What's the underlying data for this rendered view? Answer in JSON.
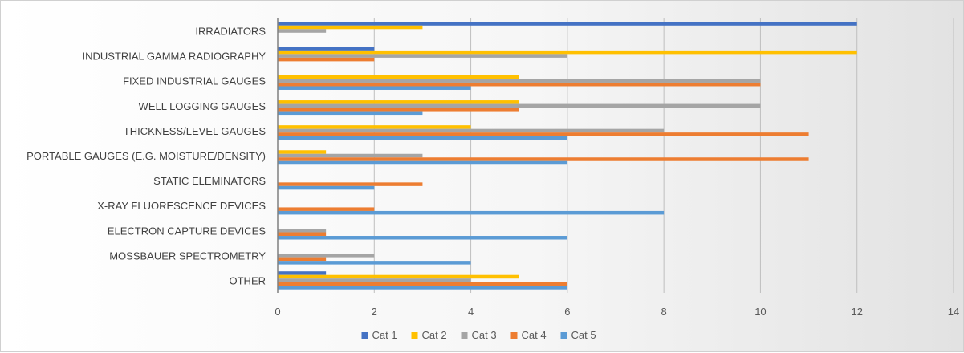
{
  "chart_data": {
    "type": "bar",
    "orientation": "horizontal",
    "categories": [
      "IRRADIATORS",
      "INDUSTRIAL GAMMA RADIOGRAPHY",
      "FIXED INDUSTRIAL GAUGES",
      "WELL LOGGING GAUGES",
      "THICKNESS/LEVEL GAUGES",
      "PORTABLE GAUGES (E.G. MOISTURE/DENSITY)",
      "STATIC ELEMINATORS",
      "X-RAY FLUORESCENCE DEVICES",
      "ELECTRON CAPTURE DEVICES",
      "MOSSBAUER SPECTROMETRY",
      "OTHER"
    ],
    "series": [
      {
        "name": "Cat 1",
        "color": "#4472C4",
        "values": [
          12,
          2,
          0,
          0,
          0,
          0,
          0,
          0,
          0,
          0,
          1
        ]
      },
      {
        "name": "Cat 2",
        "color": "#FFC000",
        "values": [
          3,
          12,
          5,
          5,
          4,
          1,
          0,
          0,
          0,
          0,
          5
        ]
      },
      {
        "name": "Cat 3",
        "color": "#A5A5A5",
        "values": [
          1,
          6,
          10,
          10,
          8,
          3,
          0,
          0,
          1,
          2,
          4
        ]
      },
      {
        "name": "Cat 4",
        "color": "#ED7D31",
        "values": [
          0,
          2,
          10,
          5,
          11,
          11,
          3,
          2,
          1,
          1,
          6
        ]
      },
      {
        "name": "Cat 5",
        "color": "#5B9BD5",
        "values": [
          0,
          0,
          4,
          3,
          6,
          6,
          2,
          8,
          6,
          4,
          6
        ]
      }
    ],
    "xlim": [
      0,
      14
    ],
    "x_ticks": [
      "0",
      "2",
      "4",
      "6",
      "8",
      "10",
      "12",
      "14"
    ],
    "grid": "vertical",
    "legend_position": "bottom",
    "title": "",
    "xlabel": "",
    "ylabel": ""
  }
}
